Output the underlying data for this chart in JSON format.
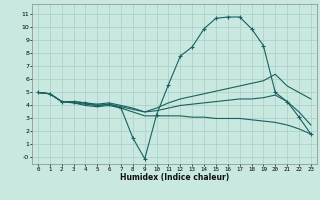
{
  "xlabel": "Humidex (Indice chaleur)",
  "background_color": "#c8e8e0",
  "grid_color": "#a8cfc8",
  "line_color": "#1a6060",
  "x_ticks": [
    0,
    1,
    2,
    3,
    4,
    5,
    6,
    7,
    8,
    9,
    10,
    11,
    12,
    13,
    14,
    15,
    16,
    17,
    18,
    19,
    20,
    21,
    22,
    23
  ],
  "y_ticks": [
    0,
    1,
    2,
    3,
    4,
    5,
    6,
    7,
    8,
    9,
    10,
    11
  ],
  "y_tick_labels": [
    "-0",
    "1",
    "2",
    "3",
    "4",
    "5",
    "6",
    "7",
    "8",
    "9",
    "10",
    "11"
  ],
  "ylim": [
    -0.5,
    11.8
  ],
  "xlim": [
    -0.5,
    23.5
  ],
  "series": [
    {
      "x": [
        0,
        1,
        2,
        3,
        4,
        5,
        6,
        7,
        8,
        9,
        10,
        11,
        12,
        13,
        14,
        15,
        16,
        17,
        18,
        19,
        20,
        21,
        22,
        23
      ],
      "y": [
        5.0,
        4.9,
        4.3,
        4.3,
        4.2,
        4.0,
        4.1,
        3.8,
        1.5,
        -0.1,
        3.3,
        5.6,
        7.8,
        8.5,
        9.9,
        10.7,
        10.8,
        10.8,
        9.9,
        8.6,
        5.0,
        4.3,
        3.1,
        1.8
      ],
      "marker": "+"
    },
    {
      "x": [
        0,
        1,
        2,
        3,
        4,
        5,
        6,
        7,
        8,
        9,
        10,
        11,
        12,
        13,
        14,
        15,
        16,
        17,
        18,
        19,
        20,
        21,
        22,
        23
      ],
      "y": [
        5.0,
        4.9,
        4.3,
        4.3,
        4.2,
        4.1,
        4.2,
        4.0,
        3.8,
        3.5,
        3.8,
        4.2,
        4.5,
        4.7,
        4.9,
        5.1,
        5.3,
        5.5,
        5.7,
        5.9,
        6.4,
        5.5,
        5.0,
        4.5
      ],
      "marker": null
    },
    {
      "x": [
        0,
        1,
        2,
        3,
        4,
        5,
        6,
        7,
        8,
        9,
        10,
        11,
        12,
        13,
        14,
        15,
        16,
        17,
        18,
        19,
        20,
        21,
        22,
        23
      ],
      "y": [
        5.0,
        4.9,
        4.3,
        4.2,
        4.1,
        4.0,
        4.1,
        3.9,
        3.7,
        3.5,
        3.6,
        3.8,
        4.0,
        4.1,
        4.2,
        4.3,
        4.4,
        4.5,
        4.5,
        4.6,
        4.8,
        4.3,
        3.5,
        2.5
      ],
      "marker": null
    },
    {
      "x": [
        0,
        1,
        2,
        3,
        4,
        5,
        6,
        7,
        8,
        9,
        10,
        11,
        12,
        13,
        14,
        15,
        16,
        17,
        18,
        19,
        20,
        21,
        22,
        23
      ],
      "y": [
        5.0,
        4.9,
        4.3,
        4.2,
        4.0,
        3.9,
        4.0,
        3.8,
        3.5,
        3.2,
        3.2,
        3.2,
        3.2,
        3.1,
        3.1,
        3.0,
        3.0,
        3.0,
        2.9,
        2.8,
        2.7,
        2.5,
        2.2,
        1.8
      ],
      "marker": null
    }
  ]
}
